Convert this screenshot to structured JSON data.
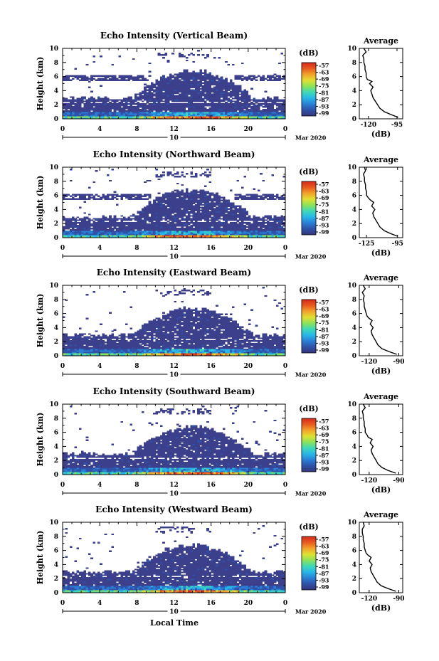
{
  "figure": {
    "xlabel": "Local Time",
    "date_label": "Mar 2020",
    "date_marker": "10",
    "colorbar_unit": "(dB)",
    "colorbar_ticks": [
      "-57",
      "-63",
      "-69",
      "-75",
      "-81",
      "-87",
      "-93",
      "-99"
    ],
    "colors": {
      "background_echo": "#3b3f8c",
      "cmap": [
        "#34357a",
        "#2f52a8",
        "#2a7fd4",
        "#28b6e8",
        "#3fd9b7",
        "#8ce25a",
        "#e0e032",
        "#f2a32a",
        "#e85a1f",
        "#d42a1c"
      ]
    }
  },
  "chart_data": [
    {
      "type": "heatmap",
      "title": "Echo Intensity (Vertical Beam)",
      "ylabel": "Height (km)",
      "x_ticks": [
        "0",
        "4",
        "8",
        "12",
        "16",
        "20",
        "0"
      ],
      "y_ticks": [
        "0",
        "2",
        "4",
        "6",
        "8",
        "10"
      ],
      "xlim": [
        0,
        24
      ],
      "ylim": [
        0,
        10
      ],
      "clim": [
        -99,
        -57
      ],
      "profile": {
        "title": "Average",
        "xlabel": "(dB)",
        "x_ticks": [
          "-120",
          "-95"
        ],
        "xlim": [
          -128,
          -90
        ],
        "heights": [
          0.2,
          0.6,
          1.0,
          1.5,
          2.0,
          2.5,
          3.0,
          3.5,
          4.0,
          4.5,
          5.0,
          5.3,
          5.6,
          6.0,
          6.5,
          7.0,
          7.5,
          8.0,
          8.5,
          9.0,
          9.5,
          10.0
        ],
        "values": [
          -94,
          -100,
          -106,
          -110,
          -112,
          -114,
          -116,
          -117,
          -118,
          -116,
          -119,
          -117,
          -121,
          -122,
          -122,
          -123,
          -123,
          -124,
          -124,
          -125,
          -122,
          -124
        ]
      }
    },
    {
      "type": "heatmap",
      "title": "Echo Intensity (Northward Beam)",
      "ylabel": "Height (km)",
      "x_ticks": [
        "0",
        "4",
        "8",
        "12",
        "16",
        "20",
        "0"
      ],
      "y_ticks": [
        "0",
        "2",
        "4",
        "6",
        "8",
        "10"
      ],
      "xlim": [
        0,
        24
      ],
      "ylim": [
        0,
        10
      ],
      "clim": [
        -99,
        -57
      ],
      "profile": {
        "title": "Average",
        "xlabel": "(dB)",
        "x_ticks": [
          "-125",
          "-95"
        ],
        "xlim": [
          -132,
          -90
        ],
        "heights": [
          0.2,
          0.6,
          1.0,
          1.5,
          2.0,
          2.5,
          3.0,
          3.5,
          4.0,
          4.5,
          5.0,
          5.3,
          5.6,
          6.0,
          6.5,
          7.0,
          7.5,
          8.0,
          8.5,
          9.0,
          9.5,
          10.0
        ],
        "values": [
          -95,
          -102,
          -108,
          -112,
          -114,
          -116,
          -118,
          -119,
          -117,
          -120,
          -118,
          -121,
          -123,
          -125,
          -125,
          -126,
          -126,
          -127,
          -127,
          -128,
          -126,
          -127
        ]
      }
    },
    {
      "type": "heatmap",
      "title": "Echo Intensity (Eastward Beam)",
      "ylabel": "Height (km)",
      "x_ticks": [
        "0",
        "4",
        "8",
        "12",
        "16",
        "20",
        "0"
      ],
      "y_ticks": [
        "0",
        "2",
        "4",
        "6",
        "8",
        "10"
      ],
      "xlim": [
        0,
        24
      ],
      "ylim": [
        0,
        10
      ],
      "clim": [
        -99,
        -57
      ],
      "profile": {
        "title": "Average",
        "xlabel": "(dB)",
        "x_ticks": [
          "-120",
          "-90"
        ],
        "xlim": [
          -130,
          -86
        ],
        "heights": [
          0.2,
          0.6,
          1.0,
          1.5,
          2.0,
          2.5,
          3.0,
          3.5,
          4.0,
          4.5,
          5.0,
          5.3,
          5.6,
          6.0,
          6.5,
          7.0,
          7.5,
          8.0,
          8.5,
          9.0,
          9.5,
          10.0
        ],
        "values": [
          -92,
          -100,
          -107,
          -111,
          -113,
          -115,
          -117,
          -118,
          -116,
          -119,
          -117,
          -120,
          -122,
          -123,
          -124,
          -125,
          -125,
          -126,
          -125,
          -127,
          -124,
          -126
        ]
      }
    },
    {
      "type": "heatmap",
      "title": "Echo Intensity (Southward Beam)",
      "ylabel": "Height (km)",
      "x_ticks": [
        "0",
        "4",
        "8",
        "12",
        "16",
        "20",
        "0"
      ],
      "y_ticks": [
        "0",
        "2",
        "4",
        "6",
        "8",
        "10"
      ],
      "xlim": [
        0,
        24
      ],
      "ylim": [
        0,
        10
      ],
      "clim": [
        -99,
        -57
      ],
      "profile": {
        "title": "Average",
        "xlabel": "(dB)",
        "x_ticks": [
          "-120",
          "-90"
        ],
        "xlim": [
          -130,
          -86
        ],
        "heights": [
          0.2,
          0.6,
          1.0,
          1.5,
          2.0,
          2.5,
          3.0,
          3.5,
          4.0,
          4.5,
          5.0,
          5.3,
          5.6,
          6.0,
          6.5,
          7.0,
          7.5,
          8.0,
          8.5,
          9.0,
          9.5,
          10.0
        ],
        "values": [
          -93,
          -101,
          -107,
          -111,
          -113,
          -115,
          -117,
          -118,
          -116,
          -119,
          -117,
          -121,
          -122,
          -124,
          -124,
          -125,
          -125,
          -126,
          -126,
          -127,
          -124,
          -126
        ]
      }
    },
    {
      "type": "heatmap",
      "title": "Echo Intensity (Westward Beam)",
      "ylabel": "Height (km)",
      "x_ticks": [
        "0",
        "4",
        "8",
        "12",
        "16",
        "20",
        "0"
      ],
      "y_ticks": [
        "0",
        "2",
        "4",
        "6",
        "8",
        "10"
      ],
      "xlim": [
        0,
        24
      ],
      "ylim": [
        0,
        10
      ],
      "clim": [
        -99,
        -57
      ],
      "profile": {
        "title": "Average",
        "xlabel": "(dB)",
        "x_ticks": [
          "-120",
          "-90"
        ],
        "xlim": [
          -130,
          -86
        ],
        "heights": [
          0.2,
          0.6,
          1.0,
          1.5,
          2.0,
          2.5,
          3.0,
          3.5,
          4.0,
          4.5,
          5.0,
          5.3,
          5.6,
          6.0,
          6.5,
          7.0,
          7.5,
          8.0,
          8.5,
          9.0,
          9.5,
          10.0
        ],
        "values": [
          -93,
          -101,
          -108,
          -112,
          -114,
          -116,
          -118,
          -119,
          -117,
          -120,
          -118,
          -121,
          -123,
          -124,
          -125,
          -125,
          -126,
          -126,
          -127,
          -127,
          -125,
          -126
        ]
      }
    }
  ]
}
